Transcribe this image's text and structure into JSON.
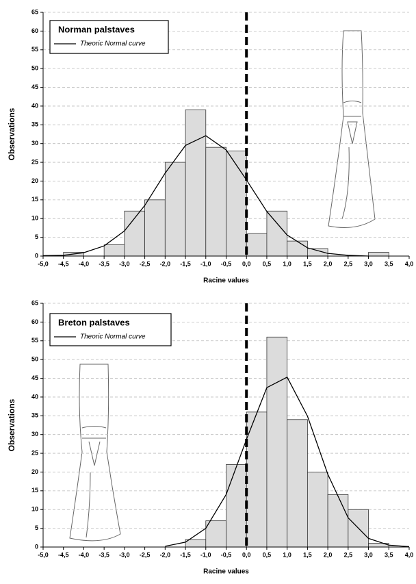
{
  "chart_data": [
    {
      "type": "histogram",
      "title": "Norman palstaves",
      "xlabel": "Racine values",
      "ylabel": "Observations",
      "bins": [
        -4.5,
        -4.0,
        -3.5,
        -3.0,
        -2.5,
        -2.0,
        -1.5,
        -1.0,
        -0.5,
        0.0,
        0.5,
        1.0,
        1.5,
        2.0,
        2.5,
        3.0,
        3.5
      ],
      "values": [
        1,
        0,
        3,
        12,
        15,
        25,
        39,
        29,
        28,
        6,
        12,
        4,
        2,
        0,
        0,
        1
      ],
      "color": "#dcdcdc",
      "curve": {
        "name": "Theoric Normal curve",
        "color": "#000000",
        "x": [
          -5.0,
          -4.5,
          -4.0,
          -3.5,
          -3.0,
          -2.5,
          -2.0,
          -1.5,
          -1.0,
          -0.5,
          0.0,
          0.5,
          1.0,
          1.5,
          2.0,
          2.5,
          3.0
        ],
        "values": [
          0.1,
          0.2,
          0.9,
          2.7,
          6.7,
          13.5,
          22.1,
          29.5,
          32.1,
          28.3,
          20.3,
          11.9,
          5.6,
          2.2,
          0.7,
          0.2,
          0.0
        ]
      },
      "reference_line_x": 0,
      "xlim": [
        -5,
        4
      ],
      "ylim": [
        0,
        65
      ],
      "xticks": [
        {
          "value": -5,
          "label": "-5,0"
        },
        {
          "value": -4.5,
          "label": "-4,5"
        },
        {
          "value": -4,
          "label": "-4,0"
        },
        {
          "value": -3.5,
          "label": "-3,5"
        },
        {
          "value": -3,
          "label": "-3,0"
        },
        {
          "value": -2.5,
          "label": "-2,5"
        },
        {
          "value": -2,
          "label": "-2,0"
        },
        {
          "value": -1.5,
          "label": "-1,5"
        },
        {
          "value": -1,
          "label": "-1,0"
        },
        {
          "value": -0.5,
          "label": "-0,5"
        },
        {
          "value": 0,
          "label": "0,0"
        },
        {
          "value": 0.5,
          "label": "0,5"
        },
        {
          "value": 1,
          "label": "1,0"
        },
        {
          "value": 1.5,
          "label": "1,5"
        },
        {
          "value": 2,
          "label": "2,0"
        },
        {
          "value": 2.5,
          "label": "2,5"
        },
        {
          "value": 3,
          "label": "3,0"
        },
        {
          "value": 3.5,
          "label": "3,5"
        },
        {
          "value": 4,
          "label": "4,0"
        }
      ],
      "yticks": [
        0,
        5,
        10,
        15,
        20,
        25,
        30,
        35,
        40,
        45,
        50,
        55,
        60,
        65
      ],
      "grid": true
    },
    {
      "type": "histogram",
      "title": "Breton palstaves",
      "xlabel": "Racine values",
      "ylabel": "Observations",
      "bins": [
        -1.5,
        -1.0,
        -0.5,
        0.0,
        0.5,
        1.0,
        1.5,
        2.0,
        2.5,
        3.0,
        3.5
      ],
      "values": [
        2,
        7,
        22,
        36,
        56,
        34,
        20,
        14,
        10,
        1
      ],
      "color": "#dcdcdc",
      "curve": {
        "name": "Theoric Normal curve",
        "color": "#000000",
        "x": [
          -2.0,
          -1.5,
          -1.0,
          -0.5,
          0.0,
          0.5,
          1.0,
          1.5,
          2.0,
          2.5,
          3.0,
          3.5,
          4.0
        ],
        "values": [
          0.2,
          1.3,
          5.0,
          14.0,
          28.7,
          42.5,
          45.3,
          34.9,
          19.4,
          7.8,
          2.3,
          0.5,
          0.1
        ]
      },
      "reference_line_x": 0,
      "xlim": [
        -5,
        4
      ],
      "ylim": [
        0,
        65
      ],
      "xticks": [
        {
          "value": -5,
          "label": "-5,0"
        },
        {
          "value": -4.5,
          "label": "-4,5"
        },
        {
          "value": -4,
          "label": "-4,0"
        },
        {
          "value": -3.5,
          "label": "-3,5"
        },
        {
          "value": -3,
          "label": "-3,0"
        },
        {
          "value": -2.5,
          "label": "-2,5"
        },
        {
          "value": -2,
          "label": "-2,0"
        },
        {
          "value": -1.5,
          "label": "-1,5"
        },
        {
          "value": -1,
          "label": "-1,0"
        },
        {
          "value": -0.5,
          "label": "-0,5"
        },
        {
          "value": 0,
          "label": "0,0"
        },
        {
          "value": 0.5,
          "label": "0,5"
        },
        {
          "value": 1,
          "label": "1,0"
        },
        {
          "value": 1.5,
          "label": "1,5"
        },
        {
          "value": 2,
          "label": "2,0"
        },
        {
          "value": 2.5,
          "label": "2,5"
        },
        {
          "value": 3,
          "label": "3,0"
        },
        {
          "value": 3.5,
          "label": "3,5"
        },
        {
          "value": 4,
          "label": "4,0"
        }
      ],
      "yticks": [
        0,
        5,
        10,
        15,
        20,
        25,
        30,
        35,
        40,
        45,
        50,
        55,
        60,
        65
      ],
      "grid": true
    }
  ]
}
